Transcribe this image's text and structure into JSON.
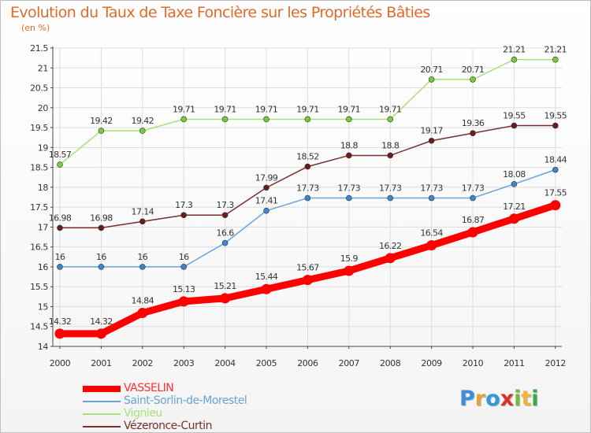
{
  "title": "Evolution du Taux de Taxe Foncière sur les Propriétés Bâties",
  "subtitle": "(en %)",
  "logo": {
    "letters": [
      "P",
      "r",
      "o",
      "x",
      "i",
      "t",
      "i"
    ],
    "colors": [
      "#3f8fd6",
      "#e8a33a",
      "#2e9bd8",
      "#d9312a",
      "#7ab83a",
      "#f0b43a",
      "#3aaa48"
    ]
  },
  "chart_data": {
    "type": "line",
    "x": [
      2000,
      2001,
      2002,
      2003,
      2004,
      2005,
      2006,
      2007,
      2008,
      2009,
      2010,
      2011,
      2012
    ],
    "ylim": [
      14,
      21.5
    ],
    "yticks": [
      14,
      14.5,
      15,
      15.5,
      16,
      16.5,
      17,
      17.5,
      18,
      18.5,
      19,
      19.5,
      20,
      20.5,
      21,
      21.5
    ],
    "legend_position": "bottom-left",
    "series": [
      {
        "name": "VASSELIN",
        "color": "#ff0000",
        "emphasis": true,
        "values": [
          14.32,
          14.32,
          14.84,
          15.13,
          15.21,
          15.44,
          15.67,
          15.9,
          16.22,
          16.54,
          16.87,
          17.21,
          17.55
        ]
      },
      {
        "name": "Saint-Sorlin-de-Morestel",
        "color": "#6aa3d4",
        "point_color": "#3f85c8",
        "values": [
          16,
          16,
          16,
          16,
          16.6,
          17.41,
          17.73,
          17.73,
          17.73,
          17.73,
          17.73,
          18.08,
          18.44
        ]
      },
      {
        "name": "Vignieu",
        "color": "#a8e07a",
        "point_color": "#77cc3b",
        "values": [
          18.57,
          19.42,
          19.42,
          19.71,
          19.71,
          19.71,
          19.71,
          19.71,
          19.71,
          20.71,
          20.71,
          21.21,
          21.21
        ]
      },
      {
        "name": "Vézeronce-Curtin",
        "color": "#7a2e2e",
        "point_color": "#6b1d1d",
        "values": [
          16.98,
          16.98,
          17.14,
          17.3,
          17.3,
          17.99,
          18.52,
          18.8,
          18.8,
          19.17,
          19.36,
          19.55,
          19.55
        ]
      }
    ]
  }
}
